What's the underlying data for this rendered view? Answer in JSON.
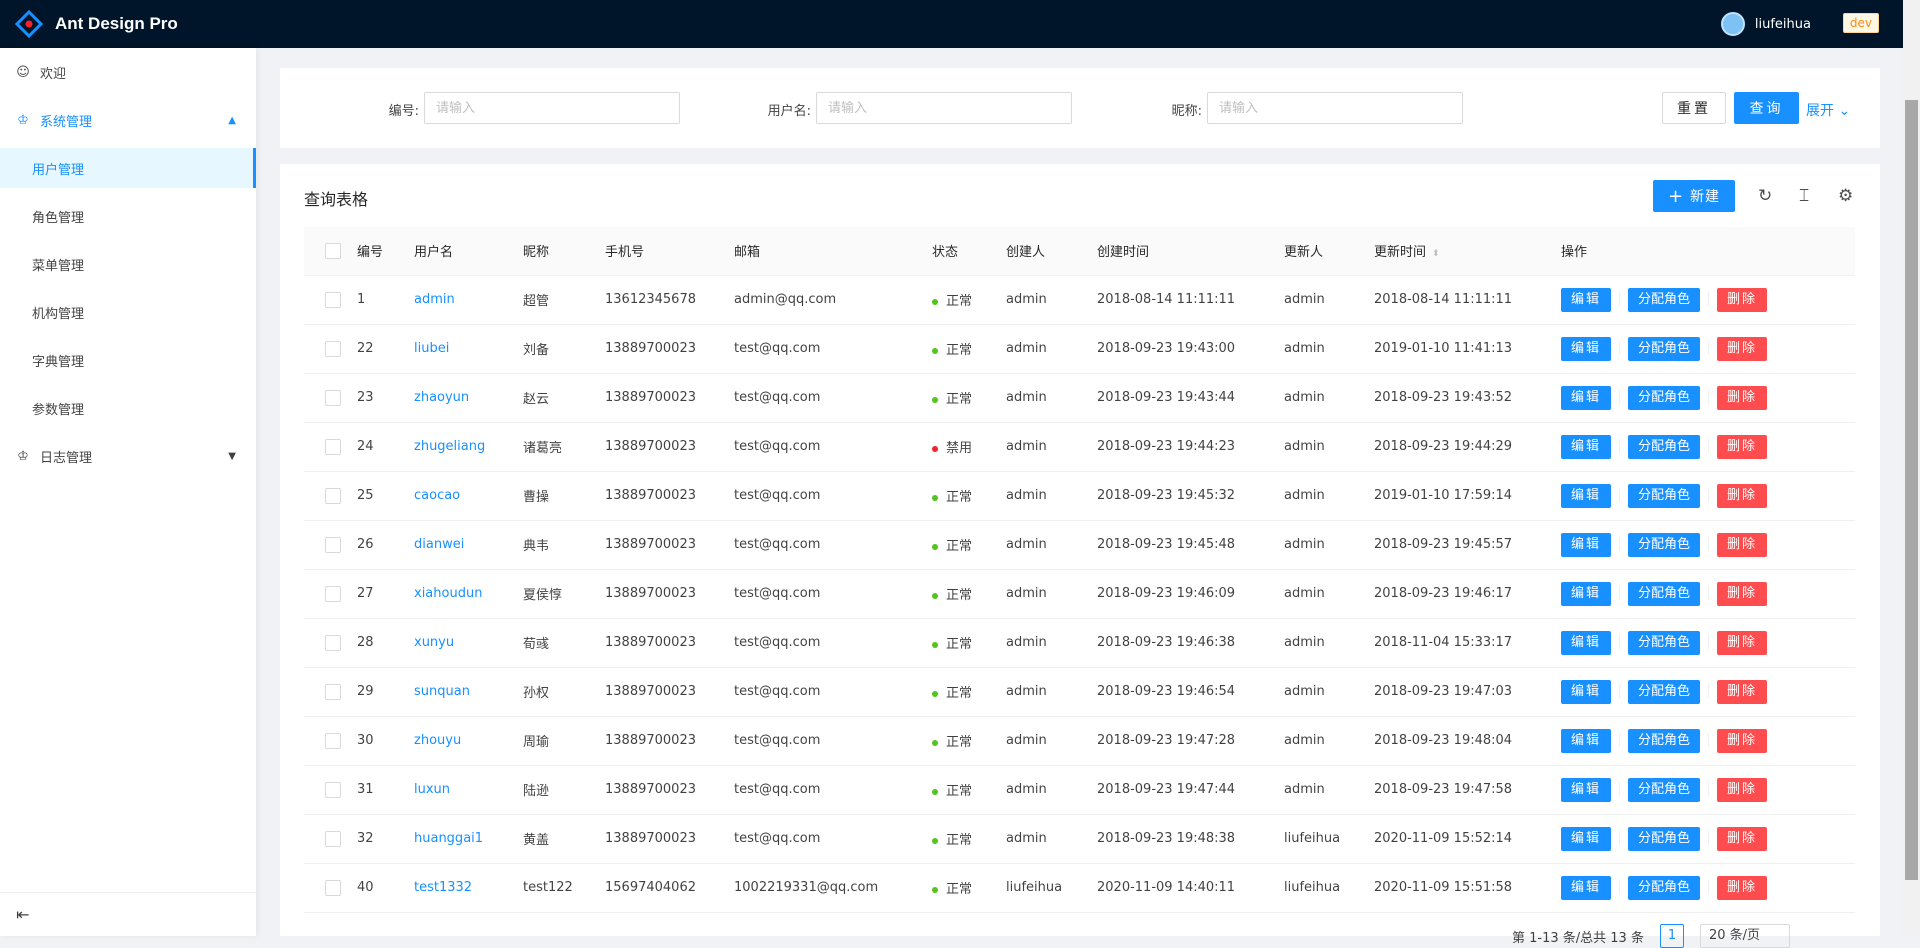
{
  "header": {
    "title": "Ant Design Pro",
    "user": "liufeihua",
    "env": "dev",
    "accent": "#1890ff",
    "bg": "#001529"
  },
  "sidebar": {
    "items": [
      {
        "label": "欢迎",
        "icon": "smile-icon"
      },
      {
        "label": "系统管理",
        "icon": "crown-icon",
        "open": true
      },
      {
        "label": "用户管理",
        "selected": true,
        "sub": true
      },
      {
        "label": "角色管理",
        "sub": true
      },
      {
        "label": "菜单管理",
        "sub": true
      },
      {
        "label": "机构管理",
        "sub": true
      },
      {
        "label": "字典管理",
        "sub": true
      },
      {
        "label": "参数管理",
        "sub": true
      },
      {
        "label": "日志管理",
        "icon": "crown-icon"
      }
    ]
  },
  "search": {
    "fields": [
      {
        "label": "编号:",
        "placeholder": "请输入"
      },
      {
        "label": "用户名:",
        "placeholder": "请输入"
      },
      {
        "label": "昵称:",
        "placeholder": "请输入"
      }
    ],
    "reset": "重置",
    "query": "查询",
    "expand": "展开"
  },
  "table": {
    "title": "查询表格",
    "new_label": "新建",
    "columns": [
      "编号",
      "用户名",
      "昵称",
      "手机号",
      "邮箱",
      "状态",
      "创建人",
      "创建时间",
      "更新人",
      "更新时间",
      "操作"
    ],
    "actions": {
      "edit": "编辑",
      "assign": "分配角色",
      "delete": "删除"
    },
    "status_colors": {
      "正常": "#52c41a",
      "禁用": "#f5222d"
    },
    "rows": [
      [
        "1",
        "admin",
        "超管",
        "13612345678",
        "admin@qq.com",
        "正常",
        "admin",
        "2018-08-14 11:11:11",
        "admin",
        "2018-08-14 11:11:11"
      ],
      [
        "22",
        "liubei",
        "刘备",
        "13889700023",
        "test@qq.com",
        "正常",
        "admin",
        "2018-09-23 19:43:00",
        "admin",
        "2019-01-10 11:41:13"
      ],
      [
        "23",
        "zhaoyun",
        "赵云",
        "13889700023",
        "test@qq.com",
        "正常",
        "admin",
        "2018-09-23 19:43:44",
        "admin",
        "2018-09-23 19:43:52"
      ],
      [
        "24",
        "zhugeliang",
        "诸葛亮",
        "13889700023",
        "test@qq.com",
        "禁用",
        "admin",
        "2018-09-23 19:44:23",
        "admin",
        "2018-09-23 19:44:29"
      ],
      [
        "25",
        "caocao",
        "曹操",
        "13889700023",
        "test@qq.com",
        "正常",
        "admin",
        "2018-09-23 19:45:32",
        "admin",
        "2019-01-10 17:59:14"
      ],
      [
        "26",
        "dianwei",
        "典韦",
        "13889700023",
        "test@qq.com",
        "正常",
        "admin",
        "2018-09-23 19:45:48",
        "admin",
        "2018-09-23 19:45:57"
      ],
      [
        "27",
        "xiahoudun",
        "夏侯惇",
        "13889700023",
        "test@qq.com",
        "正常",
        "admin",
        "2018-09-23 19:46:09",
        "admin",
        "2018-09-23 19:46:17"
      ],
      [
        "28",
        "xunyu",
        "荀彧",
        "13889700023",
        "test@qq.com",
        "正常",
        "admin",
        "2018-09-23 19:46:38",
        "admin",
        "2018-11-04 15:33:17"
      ],
      [
        "29",
        "sunquan",
        "孙权",
        "13889700023",
        "test@qq.com",
        "正常",
        "admin",
        "2018-09-23 19:46:54",
        "admin",
        "2018-09-23 19:47:03"
      ],
      [
        "30",
        "zhouyu",
        "周瑜",
        "13889700023",
        "test@qq.com",
        "正常",
        "admin",
        "2018-09-23 19:47:28",
        "admin",
        "2018-09-23 19:48:04"
      ],
      [
        "31",
        "luxun",
        "陆逊",
        "13889700023",
        "test@qq.com",
        "正常",
        "admin",
        "2018-09-23 19:47:44",
        "admin",
        "2018-09-23 19:47:58"
      ],
      [
        "32",
        "huanggai1",
        "黄盖",
        "13889700023",
        "test@qq.com",
        "正常",
        "admin",
        "2018-09-23 19:48:38",
        "liufeihua",
        "2020-11-09 15:52:14"
      ],
      [
        "40",
        "test1332",
        "test122",
        "15697404062",
        "1002219331@qq.com",
        "正常",
        "liufeihua",
        "2020-11-09 14:40:11",
        "liufeihua",
        "2020-11-09 15:51:58"
      ]
    ]
  },
  "pagination": {
    "summary": "第 1-13 条/总共 13 条",
    "current": "1",
    "page_size": "20 条/页"
  }
}
